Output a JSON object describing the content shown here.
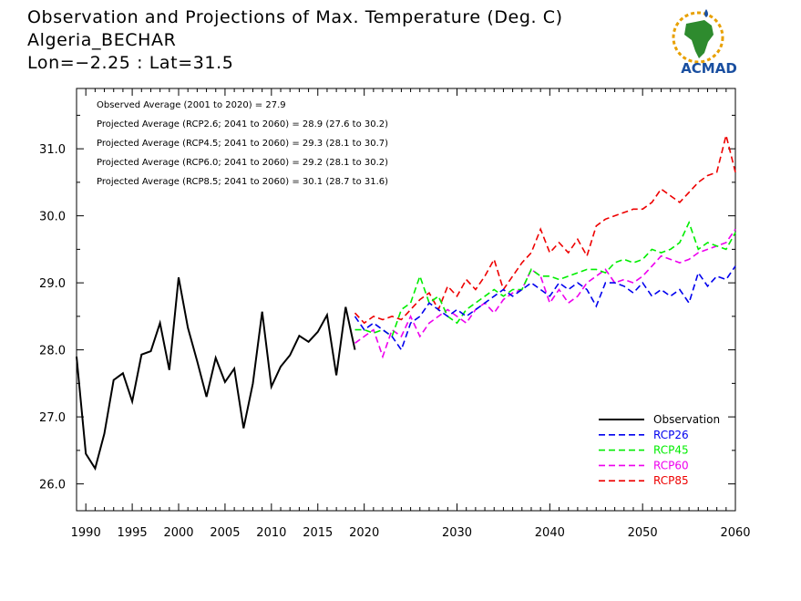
{
  "header": {
    "title": "Observation and Projections of Max. Temperature (Deg. C)",
    "location": "Algeria_BECHAR",
    "coords": "Lon=−2.25 : Lat=31.5"
  },
  "logo": {
    "text": "ACMAD",
    "icon": "africa-map-logo"
  },
  "colors": {
    "observation": "#000000",
    "rcp26": "#0000ee",
    "rcp45": "#00ee00",
    "rcp60": "#ee00ee",
    "rcp85": "#ee0000",
    "logo_text": "#1a4fa0",
    "logo_map": "#2e8b2e",
    "logo_ring": "#e8a000"
  },
  "stats": [
    "Observed Average (2001 to 2020) = 27.9",
    "Projected Average (RCP2.6; 2041 to 2060) = 28.9 (27.6 to 30.2)",
    "Projected Average (RCP4.5; 2041 to 2060) = 29.3 (28.1 to 30.7)",
    "Projected Average (RCP6.0; 2041 to 2060) = 29.2 (28.1 to 30.2)",
    "Projected Average (RCP8.5; 2041 to 2060) = 30.1 (28.7 to 31.6)"
  ],
  "chart_data": {
    "type": "line",
    "xlim": [
      1989,
      2060
    ],
    "ylim": [
      25.6,
      31.9
    ],
    "x_ticks": [
      1990,
      1995,
      2000,
      2005,
      2010,
      2015,
      2020,
      2030,
      2040,
      2050,
      2060
    ],
    "y_ticks": [
      "26.0",
      "27.0",
      "28.0",
      "29.0",
      "30.0",
      "31.0"
    ],
    "legend_position": "bottom-right",
    "grid": false,
    "series": [
      {
        "name": "Observation",
        "key": "observation",
        "dash": "solid",
        "x": [
          1989,
          1990,
          1991,
          1992,
          1993,
          1994,
          1995,
          1996,
          1997,
          1998,
          1999,
          2000,
          2001,
          2002,
          2003,
          2004,
          2005,
          2006,
          2007,
          2008,
          2009,
          2010,
          2011,
          2012,
          2013,
          2014,
          2015,
          2016,
          2017,
          2018,
          2019
        ],
        "values": [
          27.9,
          26.45,
          26.23,
          26.75,
          27.55,
          27.65,
          27.23,
          27.93,
          27.98,
          28.4,
          27.7,
          29.08,
          28.33,
          27.83,
          27.3,
          27.88,
          27.52,
          27.72,
          26.83,
          27.5,
          28.57,
          27.45,
          27.75,
          27.92,
          28.21,
          28.12,
          28.27,
          28.52,
          27.62,
          28.64,
          28.0
        ]
      },
      {
        "name": "RCP26",
        "key": "rcp26",
        "dash": "dashed",
        "x": [
          2019,
          2020,
          2021,
          2022,
          2023,
          2024,
          2025,
          2026,
          2027,
          2028,
          2029,
          2030,
          2031,
          2032,
          2033,
          2034,
          2035,
          2036,
          2037,
          2038,
          2039,
          2040,
          2041,
          2042,
          2043,
          2044,
          2045,
          2046,
          2047,
          2048,
          2049,
          2050,
          2051,
          2052,
          2053,
          2054,
          2055,
          2056,
          2057,
          2058,
          2059,
          2060
        ],
        "values": [
          28.5,
          28.3,
          28.4,
          28.3,
          28.2,
          28.0,
          28.4,
          28.5,
          28.7,
          28.6,
          28.5,
          28.6,
          28.5,
          28.6,
          28.7,
          28.8,
          28.9,
          28.8,
          28.9,
          29.0,
          28.9,
          28.8,
          29.0,
          28.9,
          29.0,
          28.9,
          28.65,
          29.0,
          29.0,
          28.95,
          28.85,
          29.0,
          28.8,
          28.9,
          28.8,
          28.9,
          28.7,
          29.15,
          28.95,
          29.1,
          29.05,
          29.25
        ]
      },
      {
        "name": "RCP45",
        "key": "rcp45",
        "dash": "dashed",
        "x": [
          2019,
          2020,
          2021,
          2022,
          2023,
          2024,
          2025,
          2026,
          2027,
          2028,
          2029,
          2030,
          2031,
          2032,
          2033,
          2034,
          2035,
          2036,
          2037,
          2038,
          2039,
          2040,
          2041,
          2042,
          2043,
          2044,
          2045,
          2046,
          2047,
          2048,
          2049,
          2050,
          2051,
          2052,
          2053,
          2054,
          2055,
          2056,
          2057,
          2058,
          2059,
          2060
        ],
        "values": [
          28.3,
          28.3,
          28.25,
          28.3,
          28.2,
          28.6,
          28.7,
          29.1,
          28.7,
          28.8,
          28.5,
          28.4,
          28.6,
          28.7,
          28.8,
          28.9,
          28.8,
          28.9,
          28.9,
          29.2,
          29.1,
          29.1,
          29.05,
          29.1,
          29.15,
          29.2,
          29.2,
          29.15,
          29.3,
          29.35,
          29.3,
          29.35,
          29.5,
          29.45,
          29.5,
          29.6,
          29.9,
          29.5,
          29.6,
          29.55,
          29.5,
          29.75
        ]
      },
      {
        "name": "RCP60",
        "key": "rcp60",
        "dash": "dashed",
        "x": [
          2019,
          2020,
          2021,
          2022,
          2023,
          2024,
          2025,
          2026,
          2027,
          2028,
          2029,
          2030,
          2031,
          2032,
          2033,
          2034,
          2035,
          2036,
          2037,
          2038,
          2039,
          2040,
          2041,
          2042,
          2043,
          2044,
          2045,
          2046,
          2047,
          2048,
          2049,
          2050,
          2051,
          2052,
          2053,
          2054,
          2055,
          2056,
          2057,
          2058,
          2059,
          2060
        ],
        "values": [
          28.1,
          28.2,
          28.3,
          27.9,
          28.3,
          28.2,
          28.5,
          28.2,
          28.4,
          28.5,
          28.6,
          28.5,
          28.4,
          28.6,
          28.7,
          28.55,
          28.75,
          28.85,
          28.9,
          29.2,
          29.1,
          28.7,
          28.9,
          28.7,
          28.8,
          29.0,
          29.1,
          29.2,
          29.0,
          29.05,
          29.0,
          29.1,
          29.25,
          29.4,
          29.35,
          29.3,
          29.35,
          29.45,
          29.5,
          29.55,
          29.6,
          29.8
        ]
      },
      {
        "name": "RCP85",
        "key": "rcp85",
        "dash": "dashed",
        "x": [
          2019,
          2020,
          2021,
          2022,
          2023,
          2024,
          2025,
          2026,
          2027,
          2028,
          2029,
          2030,
          2031,
          2032,
          2033,
          2034,
          2035,
          2036,
          2037,
          2038,
          2039,
          2040,
          2041,
          2042,
          2043,
          2044,
          2045,
          2046,
          2047,
          2048,
          2049,
          2050,
          2051,
          2052,
          2053,
          2054,
          2055,
          2056,
          2057,
          2058,
          2059,
          2060
        ],
        "values": [
          28.55,
          28.4,
          28.5,
          28.45,
          28.5,
          28.45,
          28.6,
          28.75,
          28.85,
          28.6,
          28.95,
          28.8,
          29.05,
          28.9,
          29.1,
          29.35,
          28.9,
          29.1,
          29.3,
          29.45,
          29.8,
          29.45,
          29.6,
          29.45,
          29.65,
          29.4,
          29.85,
          29.95,
          30.0,
          30.05,
          30.1,
          30.1,
          30.2,
          30.4,
          30.3,
          30.2,
          30.35,
          30.5,
          30.6,
          30.65,
          31.2,
          30.65
        ]
      }
    ]
  }
}
